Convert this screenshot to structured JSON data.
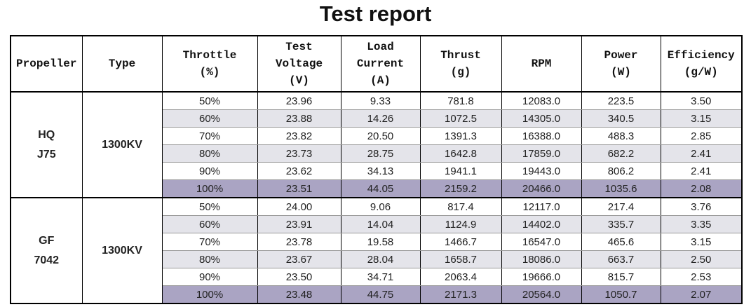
{
  "title": "Test report",
  "headers": [
    [
      "Propeller"
    ],
    [
      "Type"
    ],
    [
      "Throttle",
      "(%)"
    ],
    [
      "Test",
      "Voltage",
      "(V)"
    ],
    [
      "Load",
      "Current",
      "(A)"
    ],
    [
      "Thrust",
      "(g)"
    ],
    [
      "RPM"
    ],
    [
      "Power",
      "(W)"
    ],
    [
      "Efficiency",
      "(g/W)"
    ]
  ],
  "groups": [
    {
      "propeller": [
        "HQ",
        "J75"
      ],
      "type": "1300KV",
      "rows": [
        [
          "50%",
          "23.96",
          "9.33",
          "781.8",
          "12083.0",
          "223.5",
          "3.50"
        ],
        [
          "60%",
          "23.88",
          "14.26",
          "1072.5",
          "14305.0",
          "340.5",
          "3.15"
        ],
        [
          "70%",
          "23.82",
          "20.50",
          "1391.3",
          "16388.0",
          "488.3",
          "2.85"
        ],
        [
          "80%",
          "23.73",
          "28.75",
          "1642.8",
          "17859.0",
          "682.2",
          "2.41"
        ],
        [
          "90%",
          "23.62",
          "34.13",
          "1941.1",
          "19443.0",
          "806.2",
          "2.41"
        ],
        [
          "100%",
          "23.51",
          "44.05",
          "2159.2",
          "20466.0",
          "1035.6",
          "2.08"
        ]
      ]
    },
    {
      "propeller": [
        "GF",
        "7042"
      ],
      "type": "1300KV",
      "rows": [
        [
          "50%",
          "24.00",
          "9.06",
          "817.4",
          "12117.0",
          "217.4",
          "3.76"
        ],
        [
          "60%",
          "23.91",
          "14.04",
          "1124.9",
          "14402.0",
          "335.7",
          "3.35"
        ],
        [
          "70%",
          "23.78",
          "19.58",
          "1466.7",
          "16547.0",
          "465.6",
          "3.15"
        ],
        [
          "80%",
          "23.67",
          "28.04",
          "1658.7",
          "18086.0",
          "663.7",
          "2.50"
        ],
        [
          "90%",
          "23.50",
          "34.71",
          "2063.4",
          "19666.0",
          "815.7",
          "2.53"
        ],
        [
          "100%",
          "23.48",
          "44.75",
          "2171.3",
          "20564.0",
          "1050.7",
          "2.07"
        ]
      ]
    }
  ]
}
